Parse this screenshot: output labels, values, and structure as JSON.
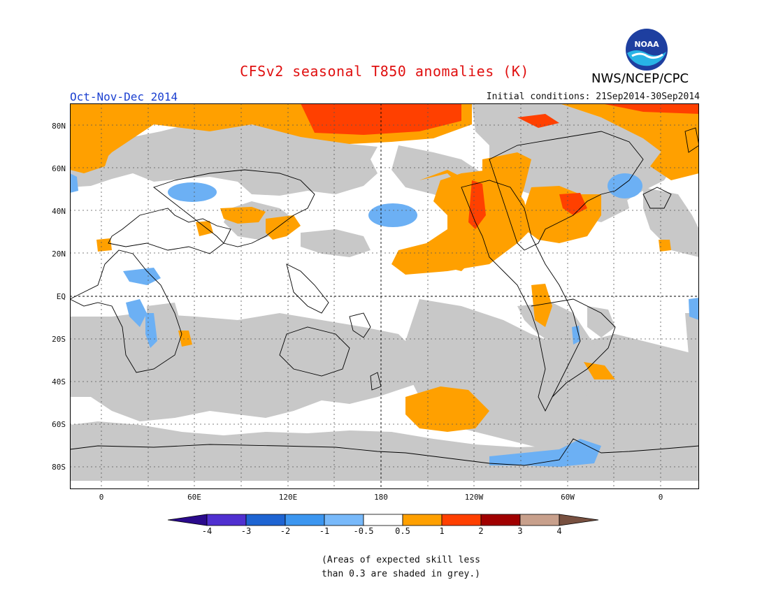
{
  "header": {
    "title": "CFSv2 seasonal T850 anomalies (K)",
    "season": "Oct-Nov-Dec 2014",
    "initial_conditions": "Initial conditions: 21Sep2014-30Sep2014",
    "agency": "NWS/NCEP/CPC",
    "logo_text": "NOAA"
  },
  "map": {
    "projection": "equirectangular",
    "lat_labels": [
      "80N",
      "60N",
      "40N",
      "20N",
      "EQ",
      "20S",
      "40S",
      "60S",
      "80S"
    ],
    "lon_labels": [
      "0",
      "60E",
      "120E",
      "180",
      "120W",
      "60W",
      "0"
    ],
    "reference_lines": [
      "EQ",
      "180"
    ],
    "gridlines": "dotted",
    "colors": {
      "grey_low_skill": "#c8c8c8",
      "orange_0_5_1": "#ffa000",
      "red_1_2": "#ff4000",
      "light_blue_m1_m0_5": "#6cb0f4",
      "coast": "#000000"
    }
  },
  "colorbar": {
    "labels": [
      "-4",
      "-3",
      "-2",
      "-1",
      "-0.5",
      "0.5",
      "1",
      "2",
      "3",
      "4"
    ],
    "colors": [
      "#2a0a8c",
      "#5030d0",
      "#1e64d2",
      "#3c96f0",
      "#78b9fa",
      "#ffffff",
      "#ffa000",
      "#ff4000",
      "#a00000",
      "#c8a08c",
      "#785040"
    ]
  },
  "note": {
    "line1": "(Areas of expected skill less",
    "line2": "than 0.3 are shaded in grey.)"
  }
}
